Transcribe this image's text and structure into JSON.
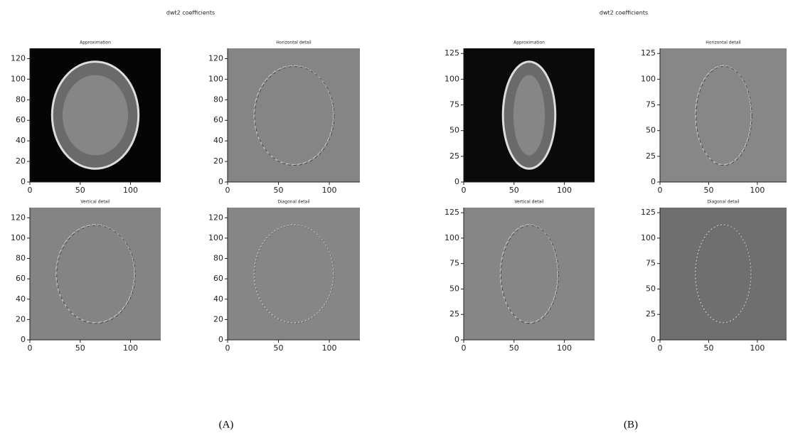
{
  "panels": [
    {
      "title": "dwt2 coefficients",
      "label": "(A)",
      "subplots": [
        {
          "title": "Approximation",
          "xlim": [
            0,
            130
          ],
          "ylim": [
            0,
            130
          ],
          "xticks": [
            0,
            50,
            100
          ],
          "yticks": [
            0,
            20,
            40,
            60,
            80,
            100,
            120
          ]
        },
        {
          "title": "Horizontal detail",
          "xlim": [
            0,
            130
          ],
          "ylim": [
            0,
            130
          ],
          "xticks": [
            0,
            50,
            100
          ],
          "yticks": [
            0,
            20,
            40,
            60,
            80,
            100,
            120
          ]
        },
        {
          "title": "Vertical detail",
          "xlim": [
            0,
            130
          ],
          "ylim": [
            0,
            130
          ],
          "xticks": [
            0,
            50,
            100
          ],
          "yticks": [
            0,
            20,
            40,
            60,
            80,
            100,
            120
          ]
        },
        {
          "title": "Diagonal detail",
          "xlim": [
            0,
            130
          ],
          "ylim": [
            0,
            130
          ],
          "xticks": [
            0,
            50,
            100
          ],
          "yticks": [
            0,
            20,
            40,
            60,
            80,
            100,
            120
          ]
        }
      ]
    },
    {
      "title": "dwt2 coefficients",
      "label": "(B)",
      "subplots": [
        {
          "title": "Approximation",
          "xlim": [
            0,
            130
          ],
          "ylim": [
            0,
            130
          ],
          "xticks": [
            0,
            50,
            100
          ],
          "yticks": [
            0,
            25,
            50,
            75,
            100,
            125
          ]
        },
        {
          "title": "Horizontal detail",
          "xlim": [
            0,
            130
          ],
          "ylim": [
            0,
            130
          ],
          "xticks": [
            0,
            50,
            100
          ],
          "yticks": [
            0,
            25,
            50,
            75,
            100,
            125
          ]
        },
        {
          "title": "Vertical detail",
          "xlim": [
            0,
            130
          ],
          "ylim": [
            0,
            130
          ],
          "xticks": [
            0,
            50,
            100
          ],
          "yticks": [
            0,
            25,
            50,
            75,
            100,
            125
          ]
        },
        {
          "title": "Diagonal detail",
          "xlim": [
            0,
            130
          ],
          "ylim": [
            0,
            130
          ],
          "xticks": [
            0,
            50,
            100
          ],
          "yticks": [
            0,
            25,
            50,
            75,
            100,
            125
          ]
        }
      ]
    }
  ]
}
